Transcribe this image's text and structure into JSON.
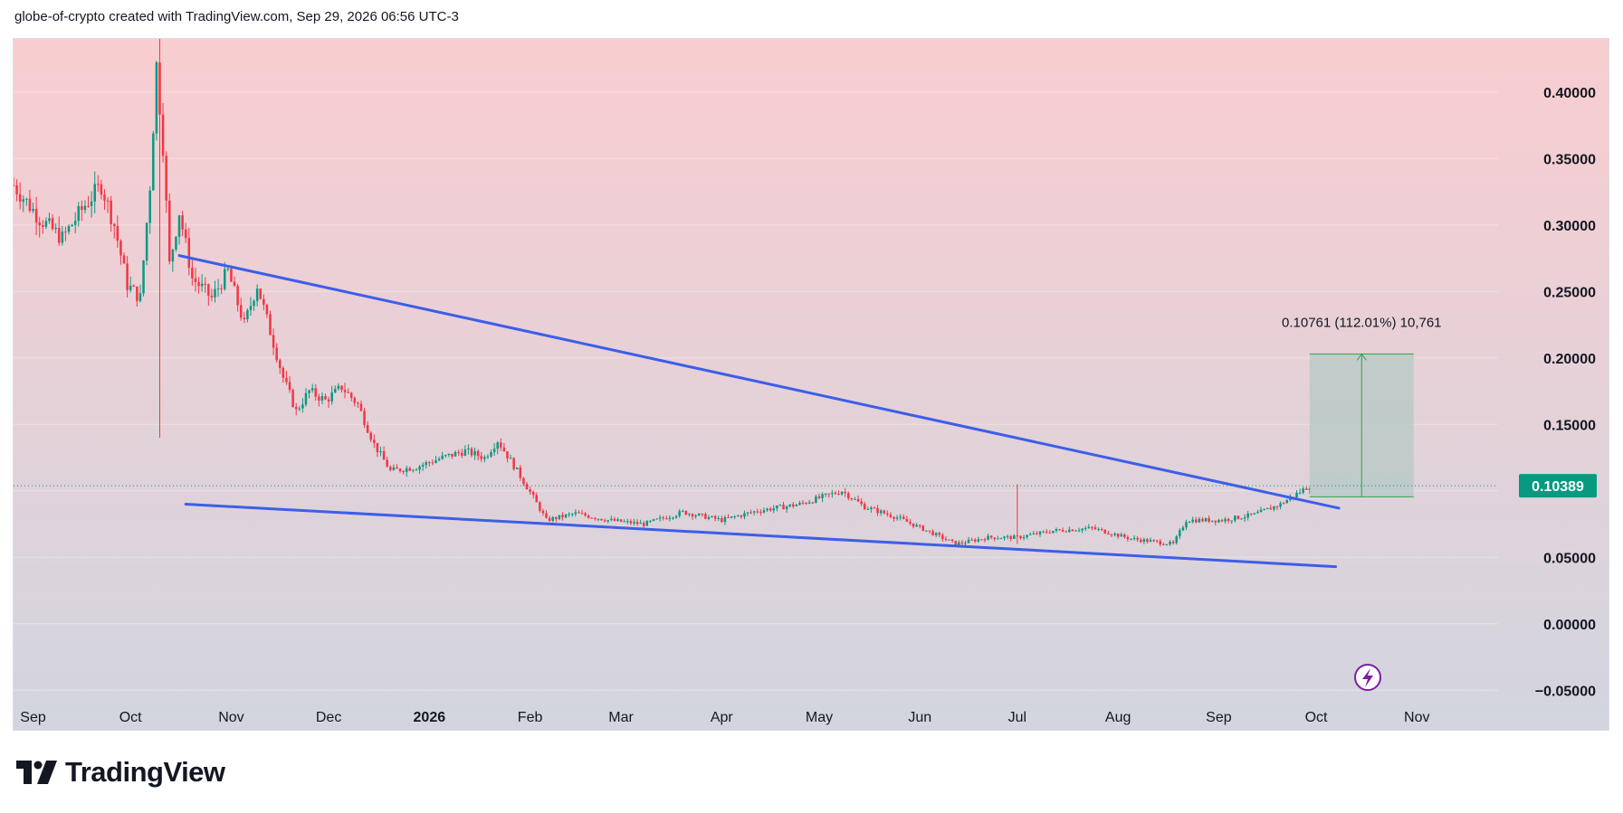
{
  "header": {
    "title": "globe-of-crypto created with TradingView.com, Sep 29, 2026 06:56 UTC-3"
  },
  "footer": {
    "brand": "TradingView"
  },
  "colors": {
    "bg_top": "#f9cdd0",
    "bg_bottom": "#d2d5df",
    "up": "#089981",
    "down": "#f23645",
    "trendline": "#3d5ee8",
    "measure_fill": "#b4c8c4",
    "measure_line": "#26a848",
    "price_label": "#089981",
    "lightning": "#7b1fa2"
  },
  "chart_data": {
    "type": "candlestick",
    "y_axis": {
      "min": -0.06,
      "max": 0.44,
      "ticks": [
        {
          "value": 0.4,
          "label": "0.40000"
        },
        {
          "value": 0.35,
          "label": "0.35000"
        },
        {
          "value": 0.3,
          "label": "0.30000"
        },
        {
          "value": 0.25,
          "label": "0.25000"
        },
        {
          "value": 0.2,
          "label": "0.20000"
        },
        {
          "value": 0.15,
          "label": "0.15000"
        },
        {
          "value": 0.1,
          "label": ""
        },
        {
          "value": 0.05,
          "label": "0.05000"
        },
        {
          "value": 0.0,
          "label": "0.00000"
        },
        {
          "value": -0.05,
          "label": "−0.05000"
        }
      ]
    },
    "x_axis": {
      "start": "2025-08-26",
      "end": "2026-11-26",
      "ticks": [
        {
          "date": "2025-09-01",
          "label": "Sep",
          "bold": false
        },
        {
          "date": "2025-10-01",
          "label": "Oct",
          "bold": false
        },
        {
          "date": "2025-11-01",
          "label": "Nov",
          "bold": false
        },
        {
          "date": "2025-12-01",
          "label": "Dec",
          "bold": false
        },
        {
          "date": "2026-01-01",
          "label": "2026",
          "bold": true
        },
        {
          "date": "2026-02-01",
          "label": "Feb",
          "bold": false
        },
        {
          "date": "2026-03-01",
          "label": "Mar",
          "bold": false
        },
        {
          "date": "2026-04-01",
          "label": "Apr",
          "bold": false
        },
        {
          "date": "2026-05-01",
          "label": "May",
          "bold": false
        },
        {
          "date": "2026-06-01",
          "label": "Jun",
          "bold": false
        },
        {
          "date": "2026-07-01",
          "label": "Jul",
          "bold": false
        },
        {
          "date": "2026-08-01",
          "label": "Aug",
          "bold": false
        },
        {
          "date": "2026-09-01",
          "label": "Sep",
          "bold": false
        },
        {
          "date": "2026-10-01",
          "label": "Oct",
          "bold": false
        },
        {
          "date": "2026-11-01",
          "label": "Nov",
          "bold": false
        }
      ]
    },
    "price_path": [
      [
        "2025-08-26",
        0.33
      ],
      [
        "2025-09-03",
        0.305
      ],
      [
        "2025-09-10",
        0.29
      ],
      [
        "2025-09-17",
        0.315
      ],
      [
        "2025-09-22",
        0.33
      ],
      [
        "2025-09-26",
        0.3
      ],
      [
        "2025-09-30",
        0.255
      ],
      [
        "2025-10-04",
        0.245
      ],
      [
        "2025-10-07",
        0.33
      ],
      [
        "2025-10-09",
        0.42
      ],
      [
        "2025-10-11",
        0.36
      ],
      [
        "2025-10-13",
        0.27
      ],
      [
        "2025-10-16",
        0.31
      ],
      [
        "2025-10-20",
        0.26
      ],
      [
        "2025-10-26",
        0.245
      ],
      [
        "2025-10-31",
        0.265
      ],
      [
        "2025-11-05",
        0.225
      ],
      [
        "2025-11-09",
        0.255
      ],
      [
        "2025-11-13",
        0.22
      ],
      [
        "2025-11-17",
        0.185
      ],
      [
        "2025-11-21",
        0.16
      ],
      [
        "2025-11-25",
        0.175
      ],
      [
        "2025-11-30",
        0.168
      ],
      [
        "2025-12-05",
        0.178
      ],
      [
        "2025-12-10",
        0.165
      ],
      [
        "2025-12-15",
        0.135
      ],
      [
        "2025-12-20",
        0.115
      ],
      [
        "2025-12-28",
        0.118
      ],
      [
        "2026-01-05",
        0.125
      ],
      [
        "2026-01-12",
        0.13
      ],
      [
        "2026-01-18",
        0.125
      ],
      [
        "2026-01-22",
        0.138
      ],
      [
        "2026-01-28",
        0.115
      ],
      [
        "2026-02-02",
        0.095
      ],
      [
        "2026-02-06",
        0.078
      ],
      [
        "2026-02-15",
        0.083
      ],
      [
        "2026-02-25",
        0.078
      ],
      [
        "2026-03-08",
        0.075
      ],
      [
        "2026-03-20",
        0.084
      ],
      [
        "2026-04-01",
        0.078
      ],
      [
        "2026-04-12",
        0.085
      ],
      [
        "2026-04-25",
        0.09
      ],
      [
        "2026-05-08",
        0.1
      ],
      [
        "2026-05-15",
        0.088
      ],
      [
        "2026-05-25",
        0.08
      ],
      [
        "2026-06-05",
        0.068
      ],
      [
        "2026-06-12",
        0.06
      ],
      [
        "2026-06-22",
        0.065
      ],
      [
        "2026-07-01",
        0.065
      ],
      [
        "2026-07-12",
        0.07
      ],
      [
        "2026-07-24",
        0.072
      ],
      [
        "2026-08-05",
        0.064
      ],
      [
        "2026-08-18",
        0.06
      ],
      [
        "2026-08-22",
        0.078
      ],
      [
        "2026-09-02",
        0.078
      ],
      [
        "2026-09-12",
        0.082
      ],
      [
        "2026-09-20",
        0.09
      ],
      [
        "2026-09-29",
        0.1039
      ]
    ],
    "spikes": [
      {
        "date": "2025-10-10",
        "high": 0.44,
        "low": 0.14
      },
      {
        "date": "2026-07-01",
        "high": 0.105,
        "low": 0.06
      }
    ],
    "trendlines": [
      {
        "x1": "2025-10-16",
        "y1": 0.277,
        "x2": "2026-10-08",
        "y2": 0.087
      },
      {
        "x1": "2025-10-18",
        "y1": 0.09,
        "x2": "2026-10-07",
        "y2": 0.043
      }
    ],
    "measure": {
      "x1": "2026-09-29",
      "x2": "2026-10-31",
      "y_low": 0.0955,
      "y_high": 0.203,
      "label": "0.10761 (112.01%) 10,761"
    },
    "current_price": {
      "value": 0.10389,
      "label": "0.10389"
    }
  }
}
